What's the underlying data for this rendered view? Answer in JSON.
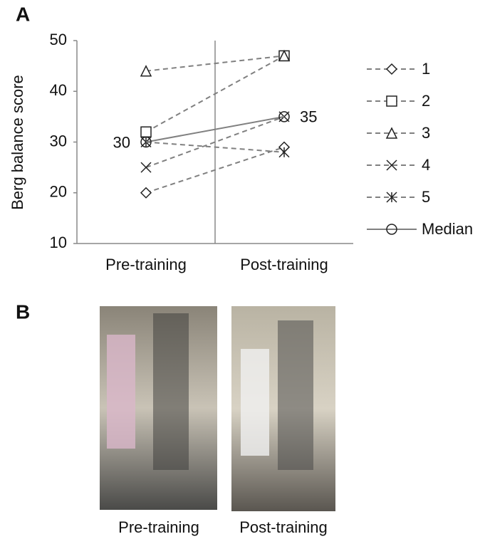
{
  "panel_labels": [
    "A",
    "B"
  ],
  "chart_data": {
    "type": "line",
    "y_label": "Berg balance score",
    "categories": [
      "Pre-training",
      "Post-training"
    ],
    "ylim": [
      10,
      50
    ],
    "yticks": [
      10,
      20,
      30,
      40,
      50
    ],
    "series": [
      {
        "name": "1",
        "color": "#808080",
        "marker": "diamond",
        "dash": true,
        "values": [
          20,
          29
        ]
      },
      {
        "name": "2",
        "color": "#808080",
        "marker": "square",
        "dash": true,
        "values": [
          32,
          47
        ]
      },
      {
        "name": "3",
        "color": "#808080",
        "marker": "triangle",
        "dash": true,
        "values": [
          44,
          47
        ]
      },
      {
        "name": "4",
        "color": "#808080",
        "marker": "x",
        "dash": true,
        "values": [
          25,
          35
        ]
      },
      {
        "name": "5",
        "color": "#808080",
        "marker": "asterisk",
        "dash": true,
        "values": [
          30,
          28
        ]
      },
      {
        "name": "Median",
        "color": "#808080",
        "marker": "circle",
        "dash": false,
        "values": [
          30,
          35
        ],
        "show_labels": true
      }
    ]
  },
  "photos": {
    "captions": [
      "Pre-training",
      "Post-training"
    ]
  }
}
